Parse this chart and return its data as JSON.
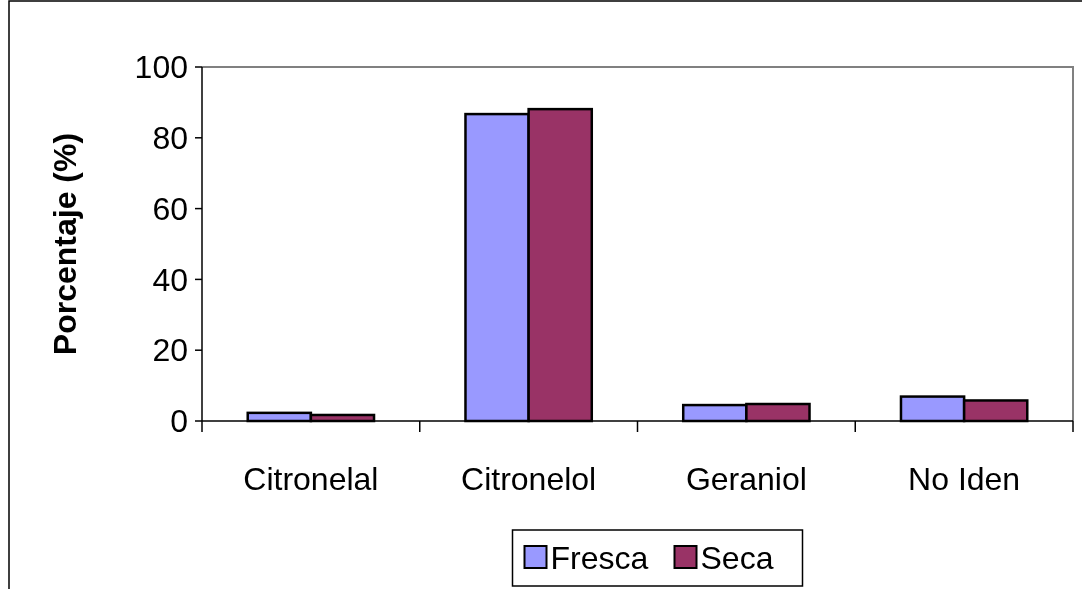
{
  "chart_data": {
    "type": "bar",
    "ylabel": "Porcentaje (%)",
    "categories": [
      "Citronelal",
      "Citronelol",
      "Geraniol",
      "No Iden"
    ],
    "series": [
      {
        "name": "Fresca",
        "color": "#9999ff",
        "values": [
          2.3,
          86.7,
          4.5,
          6.9
        ]
      },
      {
        "name": "Seca",
        "color": "#993366",
        "values": [
          1.7,
          88.1,
          4.8,
          5.8
        ]
      }
    ],
    "ylim": [
      0,
      100
    ],
    "yticks": [
      0,
      20,
      40,
      60,
      80,
      100
    ],
    "grid": false,
    "legend": "bottom"
  }
}
